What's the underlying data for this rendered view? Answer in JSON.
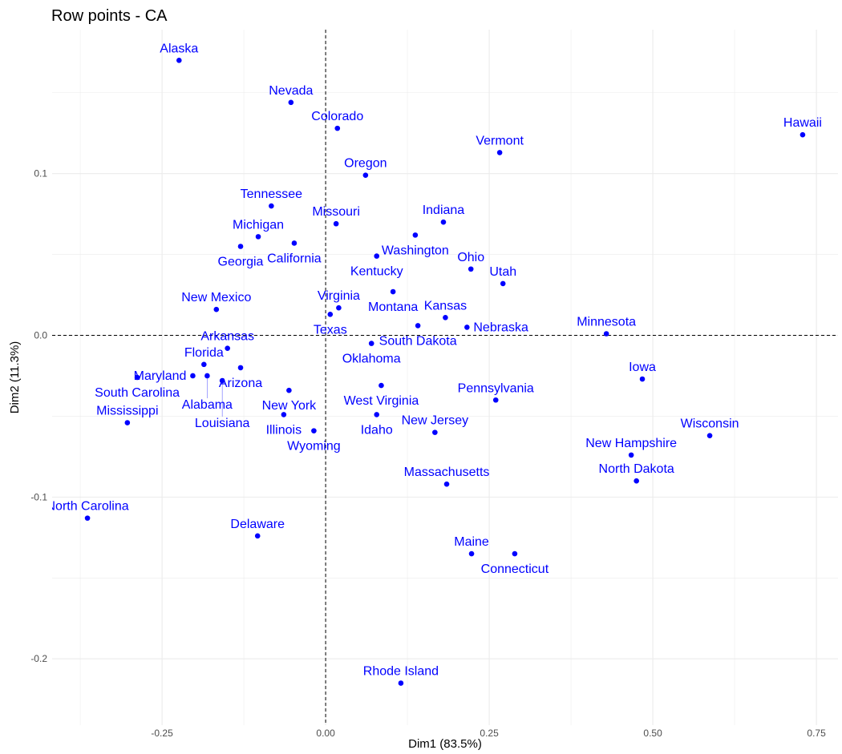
{
  "chart_data": {
    "type": "scatter",
    "title": "Row points - CA",
    "xlabel": "Dim1 (83.5%)",
    "ylabel": "Dim2 (11.3%)",
    "xlim": [
      -0.418,
      0.783
    ],
    "ylim": [
      -0.241,
      0.189
    ],
    "xticks": [
      -0.25,
      0,
      0.25,
      0.5,
      0.75
    ],
    "xtick_labels": [
      "-0.25",
      "0.00",
      "0.25",
      "0.50",
      "0.75"
    ],
    "yticks": [
      -0.2,
      -0.1,
      0,
      0.1
    ],
    "ytick_labels": [
      "-0.2",
      "-0.1",
      "0.0",
      "0.1"
    ],
    "grid": true,
    "reference_lines": "dashed at x=0 and y=0",
    "point_color": "#0000FF",
    "label_color": "#0000FF",
    "points": [
      {
        "label": "Alaska",
        "x": -0.224,
        "y": 0.17
      },
      {
        "label": "Nevada",
        "x": -0.053,
        "y": 0.144
      },
      {
        "label": "Colorado",
        "x": 0.018,
        "y": 0.128
      },
      {
        "label": "Hawaii",
        "x": 0.729,
        "y": 0.124
      },
      {
        "label": "Vermont",
        "x": 0.266,
        "y": 0.113
      },
      {
        "label": "Oregon",
        "x": 0.061,
        "y": 0.099
      },
      {
        "label": "Tennessee",
        "x": -0.083,
        "y": 0.08
      },
      {
        "label": "Missouri",
        "x": 0.016,
        "y": 0.069
      },
      {
        "label": "Indiana",
        "x": 0.18,
        "y": 0.07
      },
      {
        "label": "Washington",
        "x": 0.137,
        "y": 0.062
      },
      {
        "label": "Michigan",
        "x": -0.103,
        "y": 0.061
      },
      {
        "label": "Georgia",
        "x": -0.13,
        "y": 0.055
      },
      {
        "label": "California",
        "x": -0.048,
        "y": 0.057
      },
      {
        "label": "Kentucky",
        "x": 0.078,
        "y": 0.049
      },
      {
        "label": "Ohio",
        "x": 0.222,
        "y": 0.041
      },
      {
        "label": "Utah",
        "x": 0.271,
        "y": 0.032
      },
      {
        "label": "Montana",
        "x": 0.103,
        "y": 0.027
      },
      {
        "label": "New Mexico",
        "x": -0.167,
        "y": 0.016
      },
      {
        "label": "Virginia",
        "x": 0.02,
        "y": 0.017
      },
      {
        "label": "Texas",
        "x": 0.007,
        "y": 0.013
      },
      {
        "label": "South Dakota",
        "x": 0.141,
        "y": 0.006
      },
      {
        "label": "Kansas",
        "x": 0.183,
        "y": 0.011
      },
      {
        "label": "Nebraska",
        "x": 0.216,
        "y": 0.005
      },
      {
        "label": "Minnesota",
        "x": 0.429,
        "y": 0.001
      },
      {
        "label": "Oklahoma",
        "x": 0.07,
        "y": -0.005
      },
      {
        "label": "Arkansas",
        "x": -0.15,
        "y": -0.008
      },
      {
        "label": "Florida",
        "x": -0.186,
        "y": -0.018
      },
      {
        "label": "Arizona",
        "x": -0.13,
        "y": -0.02
      },
      {
        "label": "Maryland",
        "x": -0.203,
        "y": -0.025
      },
      {
        "label": "Alabama",
        "x": -0.181,
        "y": -0.025
      },
      {
        "label": "Louisiana",
        "x": -0.158,
        "y": -0.028
      },
      {
        "label": "South Carolina",
        "x": -0.288,
        "y": -0.026
      },
      {
        "label": "Iowa",
        "x": 0.484,
        "y": -0.027
      },
      {
        "label": "New York",
        "x": -0.056,
        "y": -0.034
      },
      {
        "label": "West Virginia",
        "x": 0.085,
        "y": -0.031
      },
      {
        "label": "Pennsylvania",
        "x": 0.26,
        "y": -0.04
      },
      {
        "label": "Illinois",
        "x": -0.064,
        "y": -0.049
      },
      {
        "label": "Idaho",
        "x": 0.078,
        "y": -0.049
      },
      {
        "label": "Mississippi",
        "x": -0.303,
        "y": -0.054
      },
      {
        "label": "Wyoming",
        "x": -0.018,
        "y": -0.059
      },
      {
        "label": "New Jersey",
        "x": 0.167,
        "y": -0.06
      },
      {
        "label": "Wisconsin",
        "x": 0.587,
        "y": -0.062
      },
      {
        "label": "New Hampshire",
        "x": 0.467,
        "y": -0.074
      },
      {
        "label": "North Dakota",
        "x": 0.475,
        "y": -0.09
      },
      {
        "label": "Massachusetts",
        "x": 0.185,
        "y": -0.092
      },
      {
        "label": "North Carolina",
        "x": -0.364,
        "y": -0.113
      },
      {
        "label": "Delaware",
        "x": -0.104,
        "y": -0.124
      },
      {
        "label": "Maine",
        "x": 0.223,
        "y": -0.135
      },
      {
        "label": "Connecticut",
        "x": 0.289,
        "y": -0.135
      },
      {
        "label": "Rhode Island",
        "x": 0.115,
        "y": -0.215
      }
    ]
  }
}
